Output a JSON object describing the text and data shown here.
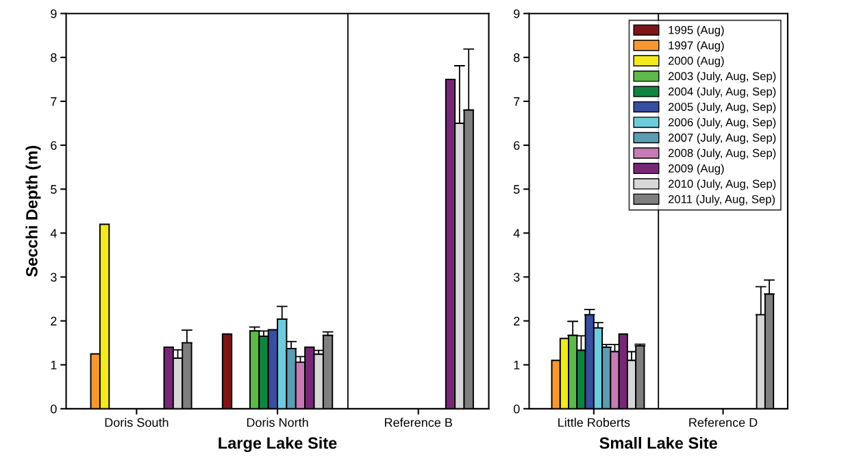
{
  "chart_data": [
    {
      "type": "bar",
      "xlabel": "Large Lake Site",
      "ylabel": "Secchi Depth (m)",
      "categories": [
        "Doris South",
        "Doris North",
        "Reference B"
      ],
      "ylim": [
        0,
        9
      ],
      "yticks": [
        0,
        1,
        2,
        3,
        4,
        5,
        6,
        7,
        8,
        9
      ],
      "grid": false,
      "legend": false,
      "series": [
        {
          "color": "#7f1416",
          "values": [
            null,
            1.7,
            null
          ]
        },
        {
          "color": "#f7982f",
          "values": [
            1.25,
            null,
            null
          ]
        },
        {
          "color": "#f2ea1c",
          "values": [
            4.2,
            null,
            null
          ]
        },
        {
          "color": "#5cb94a",
          "values": [
            null,
            1.77,
            null
          ],
          "errors": [
            null,
            [
              1.77,
              1.86
            ],
            null
          ]
        },
        {
          "color": "#0f8441",
          "values": [
            null,
            1.65,
            null
          ],
          "errors": [
            null,
            [
              1.65,
              1.77
            ],
            null
          ]
        },
        {
          "color": "#384ea0",
          "values": [
            null,
            1.8,
            null
          ]
        },
        {
          "color": "#6dcbdc",
          "values": [
            null,
            2.04,
            null
          ],
          "errors": [
            null,
            [
              2.04,
              2.33
            ],
            null
          ]
        },
        {
          "color": "#5b9db3",
          "values": [
            null,
            1.37,
            null
          ],
          "errors": [
            null,
            [
              1.37,
              1.53
            ],
            null
          ]
        },
        {
          "color": "#c77bb4",
          "values": [
            null,
            1.06,
            null
          ],
          "errors": [
            null,
            [
              1.06,
              1.19
            ],
            null
          ]
        },
        {
          "color": "#762877",
          "values": [
            1.4,
            1.4,
            7.5
          ]
        },
        {
          "color": "#d7d7d7",
          "values": [
            1.15,
            1.24,
            6.5
          ],
          "errors": [
            [
              1.15,
              1.34
            ],
            [
              1.24,
              1.33
            ],
            [
              6.5,
              7.81
            ]
          ]
        },
        {
          "color": "#7f7f7f",
          "values": [
            1.5,
            1.67,
            6.8
          ],
          "errors": [
            [
              1.5,
              1.79
            ],
            [
              1.67,
              1.75
            ],
            [
              6.8,
              8.19
            ]
          ]
        }
      ]
    },
    {
      "type": "bar",
      "xlabel": "Small Lake Site",
      "categories": [
        "Little Roberts",
        "Reference D"
      ],
      "ylim": [
        0,
        9
      ],
      "yticks": [
        0,
        1,
        2,
        3,
        4,
        5,
        6,
        7,
        8,
        9
      ],
      "grid": false,
      "legend": "top right",
      "series": [
        {
          "name": "1995 (Aug)",
          "color": "#7f1416",
          "values": [
            null,
            null
          ]
        },
        {
          "name": "1997 (Aug)",
          "color": "#f7982f",
          "values": [
            1.1,
            null
          ]
        },
        {
          "name": "2000 (Aug)",
          "color": "#f2ea1c",
          "values": [
            1.6,
            null
          ]
        },
        {
          "name": "2003 (July, Aug, Sep)",
          "color": "#5cb94a",
          "values": [
            1.67,
            null
          ],
          "errors": [
            [
              1.67,
              1.99
            ],
            null
          ]
        },
        {
          "name": "2004 (July, Aug, Sep)",
          "color": "#0f8441",
          "values": [
            1.33,
            null
          ],
          "errors": [
            [
              1.33,
              1.66
            ],
            null
          ]
        },
        {
          "name": "2005 (July, Aug, Sep)",
          "color": "#384ea0",
          "values": [
            2.14,
            null
          ],
          "errors": [
            [
              2.14,
              2.26
            ],
            null
          ]
        },
        {
          "name": "2006 (July, Aug, Sep)",
          "color": "#6dcbdc",
          "values": [
            1.84,
            null
          ],
          "errors": [
            [
              1.84,
              1.96
            ],
            null
          ]
        },
        {
          "name": "2007 (July, Aug, Sep)",
          "color": "#5b9db3",
          "values": [
            1.4,
            null
          ],
          "errors": [
            [
              1.4,
              1.46
            ],
            null
          ]
        },
        {
          "name": "2008 (July, Aug, Sep)",
          "color": "#c77bb4",
          "values": [
            1.3,
            null
          ],
          "errors": [
            [
              1.3,
              1.46
            ],
            null
          ]
        },
        {
          "name": "2009 (Aug)",
          "color": "#762877",
          "values": [
            1.7,
            null
          ]
        },
        {
          "name": "2010 (July, Aug, Sep)",
          "color": "#d7d7d7",
          "values": [
            1.1,
            2.14
          ],
          "errors": [
            [
              1.1,
              1.3
            ],
            [
              2.14,
              2.78
            ]
          ]
        },
        {
          "name": "2011 (July, Aug, Sep)",
          "color": "#7f7f7f",
          "values": [
            1.43,
            2.61
          ],
          "errors": [
            [
              1.43,
              1.47
            ],
            [
              2.61,
              2.93
            ]
          ]
        }
      ]
    }
  ]
}
